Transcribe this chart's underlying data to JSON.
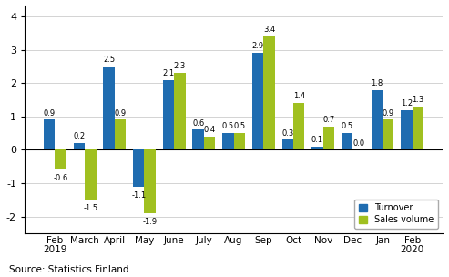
{
  "categories": [
    "Feb\n2019",
    "March",
    "April",
    "May",
    "June",
    "July",
    "Aug",
    "Sep",
    "Oct",
    "Nov",
    "Dec",
    "Jan",
    "Feb\n2020"
  ],
  "turnover": [
    0.9,
    0.2,
    2.5,
    -1.1,
    2.1,
    0.6,
    0.5,
    2.9,
    0.3,
    0.1,
    0.5,
    1.8,
    1.2
  ],
  "sales_volume": [
    -0.6,
    -1.5,
    0.9,
    -1.9,
    2.3,
    0.4,
    0.5,
    3.4,
    1.4,
    0.7,
    0.0,
    0.9,
    1.3
  ],
  "turnover_color": "#1f6cb0",
  "sales_volume_color": "#a0c020",
  "ylim": [
    -2.5,
    4.3
  ],
  "yticks": [
    -2,
    -1,
    0,
    1,
    2,
    3,
    4
  ],
  "bar_width": 0.38,
  "legend_labels": [
    "Turnover",
    "Sales volume"
  ],
  "source_text": "Source: Statistics Finland",
  "figsize": [
    4.93,
    3.04
  ],
  "dpi": 100
}
